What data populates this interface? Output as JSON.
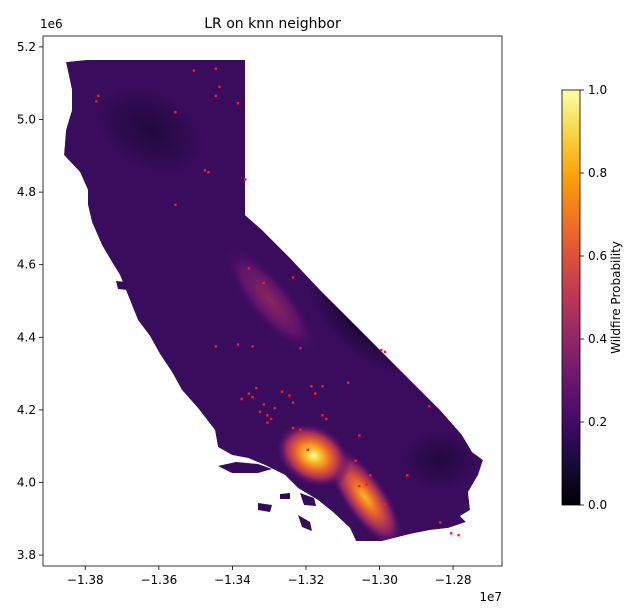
{
  "chart_data": {
    "type": "heatmap",
    "title": "LR on knn neighbor",
    "x_offset_label": "1e7",
    "y_offset_label": "1e6",
    "xlim": [
      -1.3915,
      -1.2667
    ],
    "ylim": [
      3.77,
      5.23
    ],
    "x_ticks": [
      {
        "value": -1.38,
        "label": "−1.38"
      },
      {
        "value": -1.36,
        "label": "−1.36"
      },
      {
        "value": -1.34,
        "label": "−1.34"
      },
      {
        "value": -1.32,
        "label": "−1.32"
      },
      {
        "value": -1.3,
        "label": "−1.30"
      },
      {
        "value": -1.28,
        "label": "−1.28"
      }
    ],
    "y_ticks": [
      {
        "value": 3.8,
        "label": "3.8"
      },
      {
        "value": 4.0,
        "label": "4.0"
      },
      {
        "value": 4.2,
        "label": "4.2"
      },
      {
        "value": 4.4,
        "label": "4.4"
      },
      {
        "value": 4.6,
        "label": "4.6"
      },
      {
        "value": 4.8,
        "label": "4.8"
      },
      {
        "value": 5.0,
        "label": "5.0"
      },
      {
        "value": 5.2,
        "label": "5.2"
      }
    ],
    "colorbar": {
      "label": "Wildfire Probability",
      "range": [
        0.0,
        1.0
      ],
      "ticks": [
        {
          "value": 0.0,
          "label": "0.0"
        },
        {
          "value": 0.2,
          "label": "0.2"
        },
        {
          "value": 0.4,
          "label": "0.4"
        },
        {
          "value": 0.6,
          "label": "0.6"
        },
        {
          "value": 0.8,
          "label": "0.8"
        },
        {
          "value": 1.0,
          "label": "1.0"
        }
      ],
      "colormap": "inferno"
    },
    "region": "California",
    "hotspots": [
      {
        "x": -1.318,
        "y": 4.075,
        "p": 0.95
      },
      {
        "x": -1.304,
        "y": 3.96,
        "p": 0.85
      },
      {
        "x": -1.327,
        "y": 4.49,
        "p": 0.45
      },
      {
        "x": -1.333,
        "y": 4.61,
        "p": 0.35
      },
      {
        "x": -1.34,
        "y": 4.72,
        "p": 0.3
      }
    ],
    "fire_points": [
      [
        -1.3765,
        5.065
      ],
      [
        -1.377,
        5.05
      ],
      [
        -1.3555,
        5.02
      ],
      [
        -1.3445,
        5.065
      ],
      [
        -1.3435,
        5.09
      ],
      [
        -1.3445,
        5.14
      ],
      [
        -1.3505,
        5.135
      ],
      [
        -1.3385,
        5.045
      ],
      [
        -1.3475,
        4.86
      ],
      [
        -1.3465,
        4.855
      ],
      [
        -1.3365,
        4.835
      ],
      [
        -1.3555,
        4.765
      ],
      [
        -1.3355,
        4.59
      ],
      [
        -1.3315,
        4.55
      ],
      [
        -1.3235,
        4.565
      ],
      [
        -1.3445,
        4.375
      ],
      [
        -1.3385,
        4.38
      ],
      [
        -1.3215,
        4.37
      ],
      [
        -1.3335,
        4.26
      ],
      [
        -1.3355,
        4.245
      ],
      [
        -1.3345,
        4.235
      ],
      [
        -1.3315,
        4.215
      ],
      [
        -1.3325,
        4.195
      ],
      [
        -1.3305,
        4.185
      ],
      [
        -1.3295,
        4.175
      ],
      [
        -1.3305,
        4.165
      ],
      [
        -1.3285,
        4.205
      ],
      [
        -1.3265,
        4.25
      ],
      [
        -1.3245,
        4.24
      ],
      [
        -1.3235,
        4.22
      ],
      [
        -1.3185,
        4.265
      ],
      [
        -1.3175,
        4.245
      ],
      [
        -1.3155,
        4.185
      ],
      [
        -1.3145,
        4.175
      ],
      [
        -1.3155,
        4.265
      ],
      [
        -1.3085,
        4.275
      ],
      [
        -1.3055,
        4.13
      ],
      [
        -1.3065,
        4.06
      ],
      [
        -1.3045,
        4.015
      ],
      [
        -1.3035,
        4.005
      ],
      [
        -1.3025,
        4.02
      ],
      [
        -1.3055,
        3.99
      ],
      [
        -1.3035,
        3.995
      ],
      [
        -1.2925,
        4.02
      ],
      [
        -1.2865,
        4.21
      ],
      [
        -1.2995,
        4.365
      ],
      [
        -1.2985,
        4.36
      ],
      [
        -1.2985,
        3.94
      ],
      [
        -1.2835,
        3.89
      ],
      [
        -1.2805,
        3.86
      ],
      [
        -1.2785,
        3.855
      ],
      [
        -1.3235,
        4.15
      ],
      [
        -1.3195,
        4.09
      ],
      [
        -1.3215,
        4.145
      ],
      [
        -1.3345,
        4.375
      ],
      [
        -1.3375,
        4.23
      ]
    ]
  }
}
